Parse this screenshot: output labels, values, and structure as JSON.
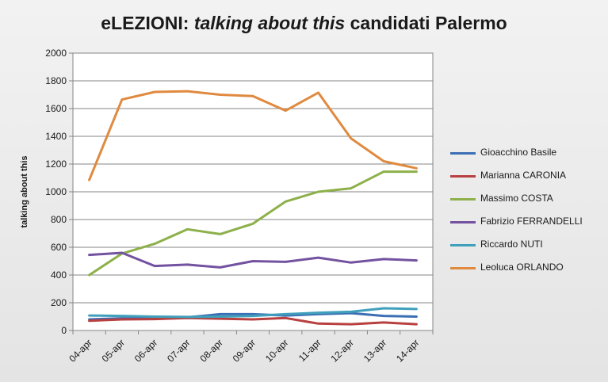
{
  "chart_data": {
    "type": "line",
    "title_prefix": "eLEZIONI: ",
    "title_italic": "talking about this",
    "title_suffix": " candidati Palermo",
    "xlabel": "",
    "ylabel": "talking about this",
    "ylim": [
      0,
      2000
    ],
    "yticks": [
      0,
      200,
      400,
      600,
      800,
      1000,
      1200,
      1400,
      1600,
      1800,
      2000
    ],
    "grid": true,
    "legend_position": "right",
    "categories": [
      "04-apr",
      "05-apr",
      "06-apr",
      "07-apr",
      "08-apr",
      "09-apr",
      "10-apr",
      "11-apr",
      "12-apr",
      "13-apr",
      "14-apr"
    ],
    "series": [
      {
        "name": "Gioacchino Basile",
        "color": "#3c6eb4",
        "values": [
          80,
          88,
          88,
          95,
          118,
          118,
          108,
          118,
          125,
          105,
          100
        ]
      },
      {
        "name": "Marianna CARONIA",
        "color": "#b84040",
        "values": [
          70,
          80,
          82,
          90,
          85,
          80,
          90,
          50,
          45,
          58,
          45
        ]
      },
      {
        "name": "Massimo  COSTA",
        "color": "#8db04a",
        "values": [
          400,
          555,
          625,
          730,
          695,
          770,
          930,
          1000,
          1025,
          1145,
          1145
        ]
      },
      {
        "name": "Fabrizio FERRANDELLI",
        "color": "#7352a0",
        "values": [
          545,
          560,
          465,
          475,
          455,
          500,
          495,
          525,
          490,
          515,
          505
        ]
      },
      {
        "name": "Riccardo NUTI",
        "color": "#40a0bc",
        "values": [
          108,
          105,
          100,
          98,
          100,
          105,
          118,
          128,
          135,
          160,
          155
        ]
      },
      {
        "name": "Leoluca ORLANDO",
        "color": "#e08a40",
        "values": [
          1085,
          1665,
          1720,
          1725,
          1700,
          1690,
          1585,
          1715,
          1385,
          1220,
          1170
        ]
      }
    ]
  }
}
